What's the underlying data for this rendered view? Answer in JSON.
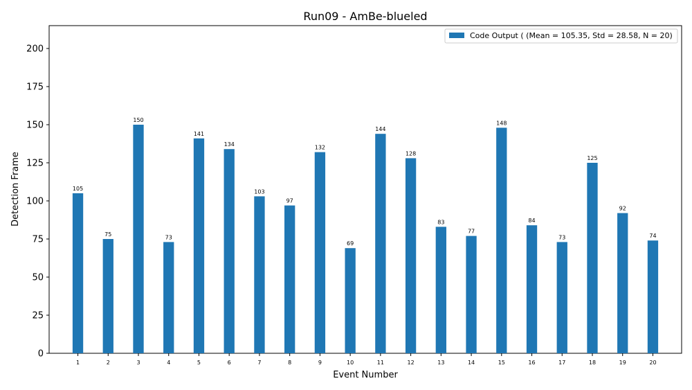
{
  "chart_data": {
    "type": "bar",
    "title": "Run09 - AmBe-blueled",
    "xlabel": "Event Number",
    "ylabel": "Detection Frame",
    "ylim": [
      0,
      215
    ],
    "yticks": [
      0,
      25,
      50,
      75,
      100,
      125,
      150,
      175,
      200
    ],
    "categories": [
      "1",
      "2",
      "3",
      "4",
      "5",
      "6",
      "7",
      "8",
      "9",
      "10",
      "11",
      "12",
      "13",
      "14",
      "15",
      "16",
      "17",
      "18",
      "19",
      "20"
    ],
    "series": [
      {
        "name": "Code Output ( (Mean = 105.35, Std = 28.58, N = 20)",
        "color": "#1f77b4",
        "values": [
          105,
          75,
          150,
          73,
          141,
          134,
          103,
          97,
          132,
          69,
          144,
          128,
          83,
          77,
          148,
          84,
          73,
          125,
          92,
          74
        ]
      }
    ],
    "legend_position": "top-right",
    "grid": false
  }
}
